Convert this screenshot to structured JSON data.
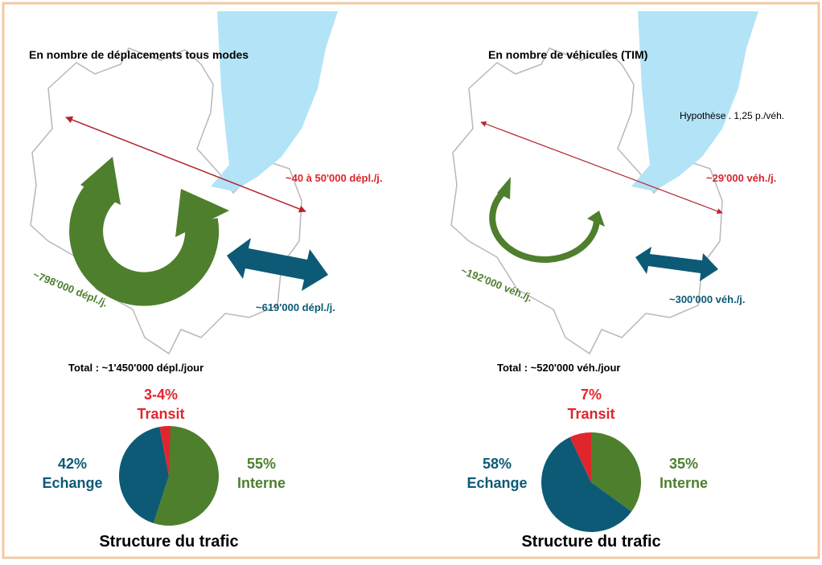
{
  "note": "Hypothèse . 1,25 p./véh.",
  "panels": [
    {
      "title": "En nombre de déplacements tous modes",
      "crossing": "~40 à 50'000 dépl./j.",
      "internal": "~798'000 dépl./j.",
      "exchange": "~619'000 dépl./j.",
      "total": "Total : ~1'450'000 dépl./jour",
      "chart_data": {
        "type": "pie",
        "title": "Structure du trafic",
        "categories": [
          "Interne",
          "Echange",
          "Transit"
        ],
        "values": [
          55,
          42,
          3.5
        ],
        "value_labels": [
          "55%",
          "42%",
          "3-4%"
        ],
        "colors": [
          "#4e7f2d",
          "#0d5a76",
          "#e0262d"
        ]
      }
    },
    {
      "title": "En nombre de véhicules (TIM)",
      "crossing": "~29'000 véh./j.",
      "internal": "~192'000 véh./j.",
      "exchange": "~300'000 véh./j.",
      "total": "Total : ~520'000 véh./jour",
      "chart_data": {
        "type": "pie",
        "title": "Structure du trafic",
        "categories": [
          "Interne",
          "Echange",
          "Transit"
        ],
        "values": [
          35,
          58,
          7
        ],
        "value_labels": [
          "35%",
          "58%",
          "7%"
        ],
        "colors": [
          "#4e7f2d",
          "#0d5a76",
          "#e0262d"
        ]
      }
    }
  ]
}
